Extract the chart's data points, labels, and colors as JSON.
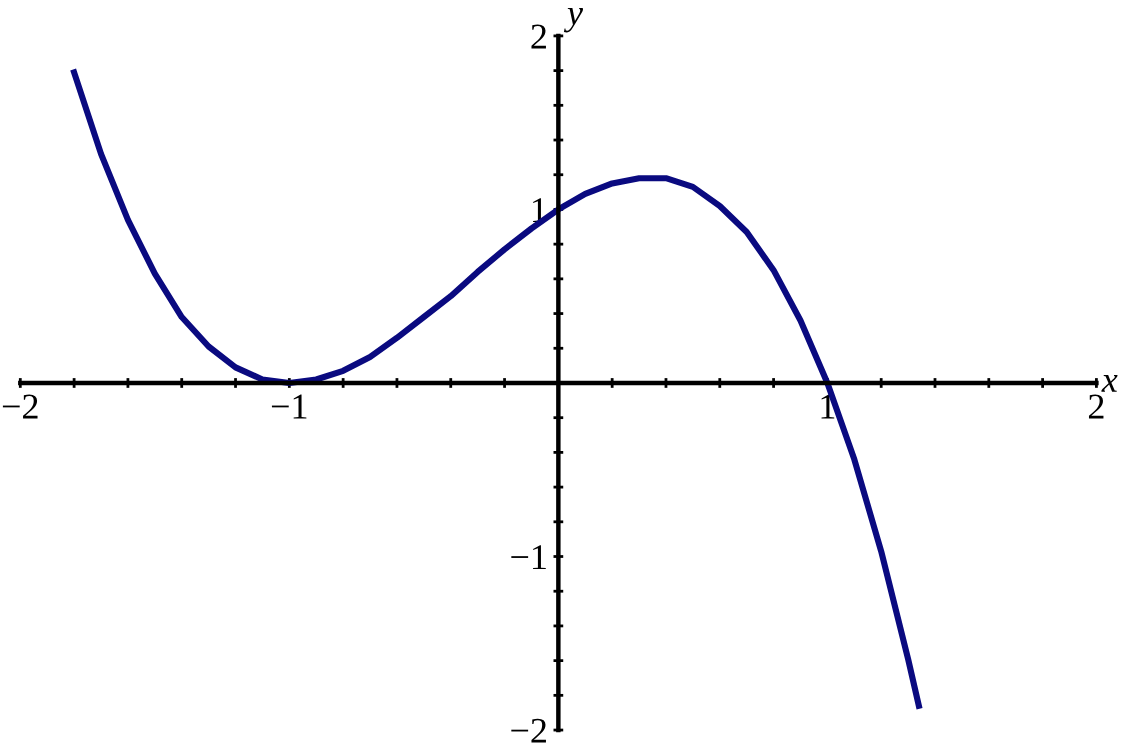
{
  "chart_data": {
    "type": "line",
    "xlabel": "x",
    "ylabel": "y",
    "x": [
      -1.8,
      -1.7,
      -1.6,
      -1.5,
      -1.4,
      -1.3,
      -1.2,
      -1.1,
      -1.0,
      -0.9,
      -0.8,
      -0.7,
      -0.6,
      -0.5,
      -0.4,
      -0.3,
      -0.2,
      -0.1,
      0,
      0.1,
      0.2,
      0.3,
      0.4,
      0.5,
      0.6,
      0.7,
      0.8,
      0.9,
      1.0,
      1.1,
      1.2,
      1.3,
      1.34
    ],
    "series": [
      {
        "color": "#0a0a80",
        "values": [
          1.79,
          1.32,
          0.94,
          0.63,
          0.38,
          0.21,
          0.09,
          0.02,
          0,
          0.02,
          0.07,
          0.15,
          0.26,
          0.38,
          0.5,
          0.64,
          0.77,
          0.89,
          1,
          1.09,
          1.15,
          1.18,
          1.18,
          1.13,
          1.02,
          0.87,
          0.65,
          0.36,
          0,
          -0.44,
          -0.97,
          -1.59,
          -1.86
        ]
      }
    ],
    "xlim": [
      -2,
      2
    ],
    "ylim": [
      -2,
      2
    ],
    "xticks": [
      {
        "value": -2,
        "label": "−2"
      },
      {
        "value": -1.8,
        "label": null
      },
      {
        "value": -1.6,
        "label": null
      },
      {
        "value": -1.4,
        "label": null
      },
      {
        "value": -1.2,
        "label": null
      },
      {
        "value": -1,
        "label": "−1"
      },
      {
        "value": -0.8,
        "label": null
      },
      {
        "value": -0.6,
        "label": null
      },
      {
        "value": -0.4,
        "label": null
      },
      {
        "value": -0.2,
        "label": null
      },
      {
        "value": 0.2,
        "label": null
      },
      {
        "value": 0.4,
        "label": null
      },
      {
        "value": 0.6,
        "label": null
      },
      {
        "value": 0.8,
        "label": null
      },
      1,
      {
        "value": 1.2,
        "label": null
      },
      {
        "value": 1.4,
        "label": null
      },
      {
        "value": 1.6,
        "label": null
      },
      {
        "value": 1.8,
        "label": null
      },
      2
    ],
    "yticks": [
      {
        "value": -2,
        "label": "−2"
      },
      {
        "value": -1.8,
        "label": null
      },
      {
        "value": -1.6,
        "label": null
      },
      {
        "value": -1.4,
        "label": null
      },
      {
        "value": -1.2,
        "label": null
      },
      {
        "value": -1,
        "label": "−1"
      },
      {
        "value": -0.8,
        "label": null
      },
      {
        "value": -0.6,
        "label": null
      },
      {
        "value": -0.4,
        "label": null
      },
      {
        "value": -0.2,
        "label": null
      },
      {
        "value": 0.2,
        "label": null
      },
      {
        "value": 0.4,
        "label": null
      },
      {
        "value": 0.6,
        "label": null
      },
      {
        "value": 0.8,
        "label": null
      },
      1,
      {
        "value": 1.2,
        "label": null
      },
      {
        "value": 1.4,
        "label": null
      },
      {
        "value": 1.6,
        "label": null
      },
      {
        "value": 1.8,
        "label": null
      },
      2
    ],
    "grid": false,
    "legend": false,
    "marker": "none",
    "line_style": "solid"
  }
}
